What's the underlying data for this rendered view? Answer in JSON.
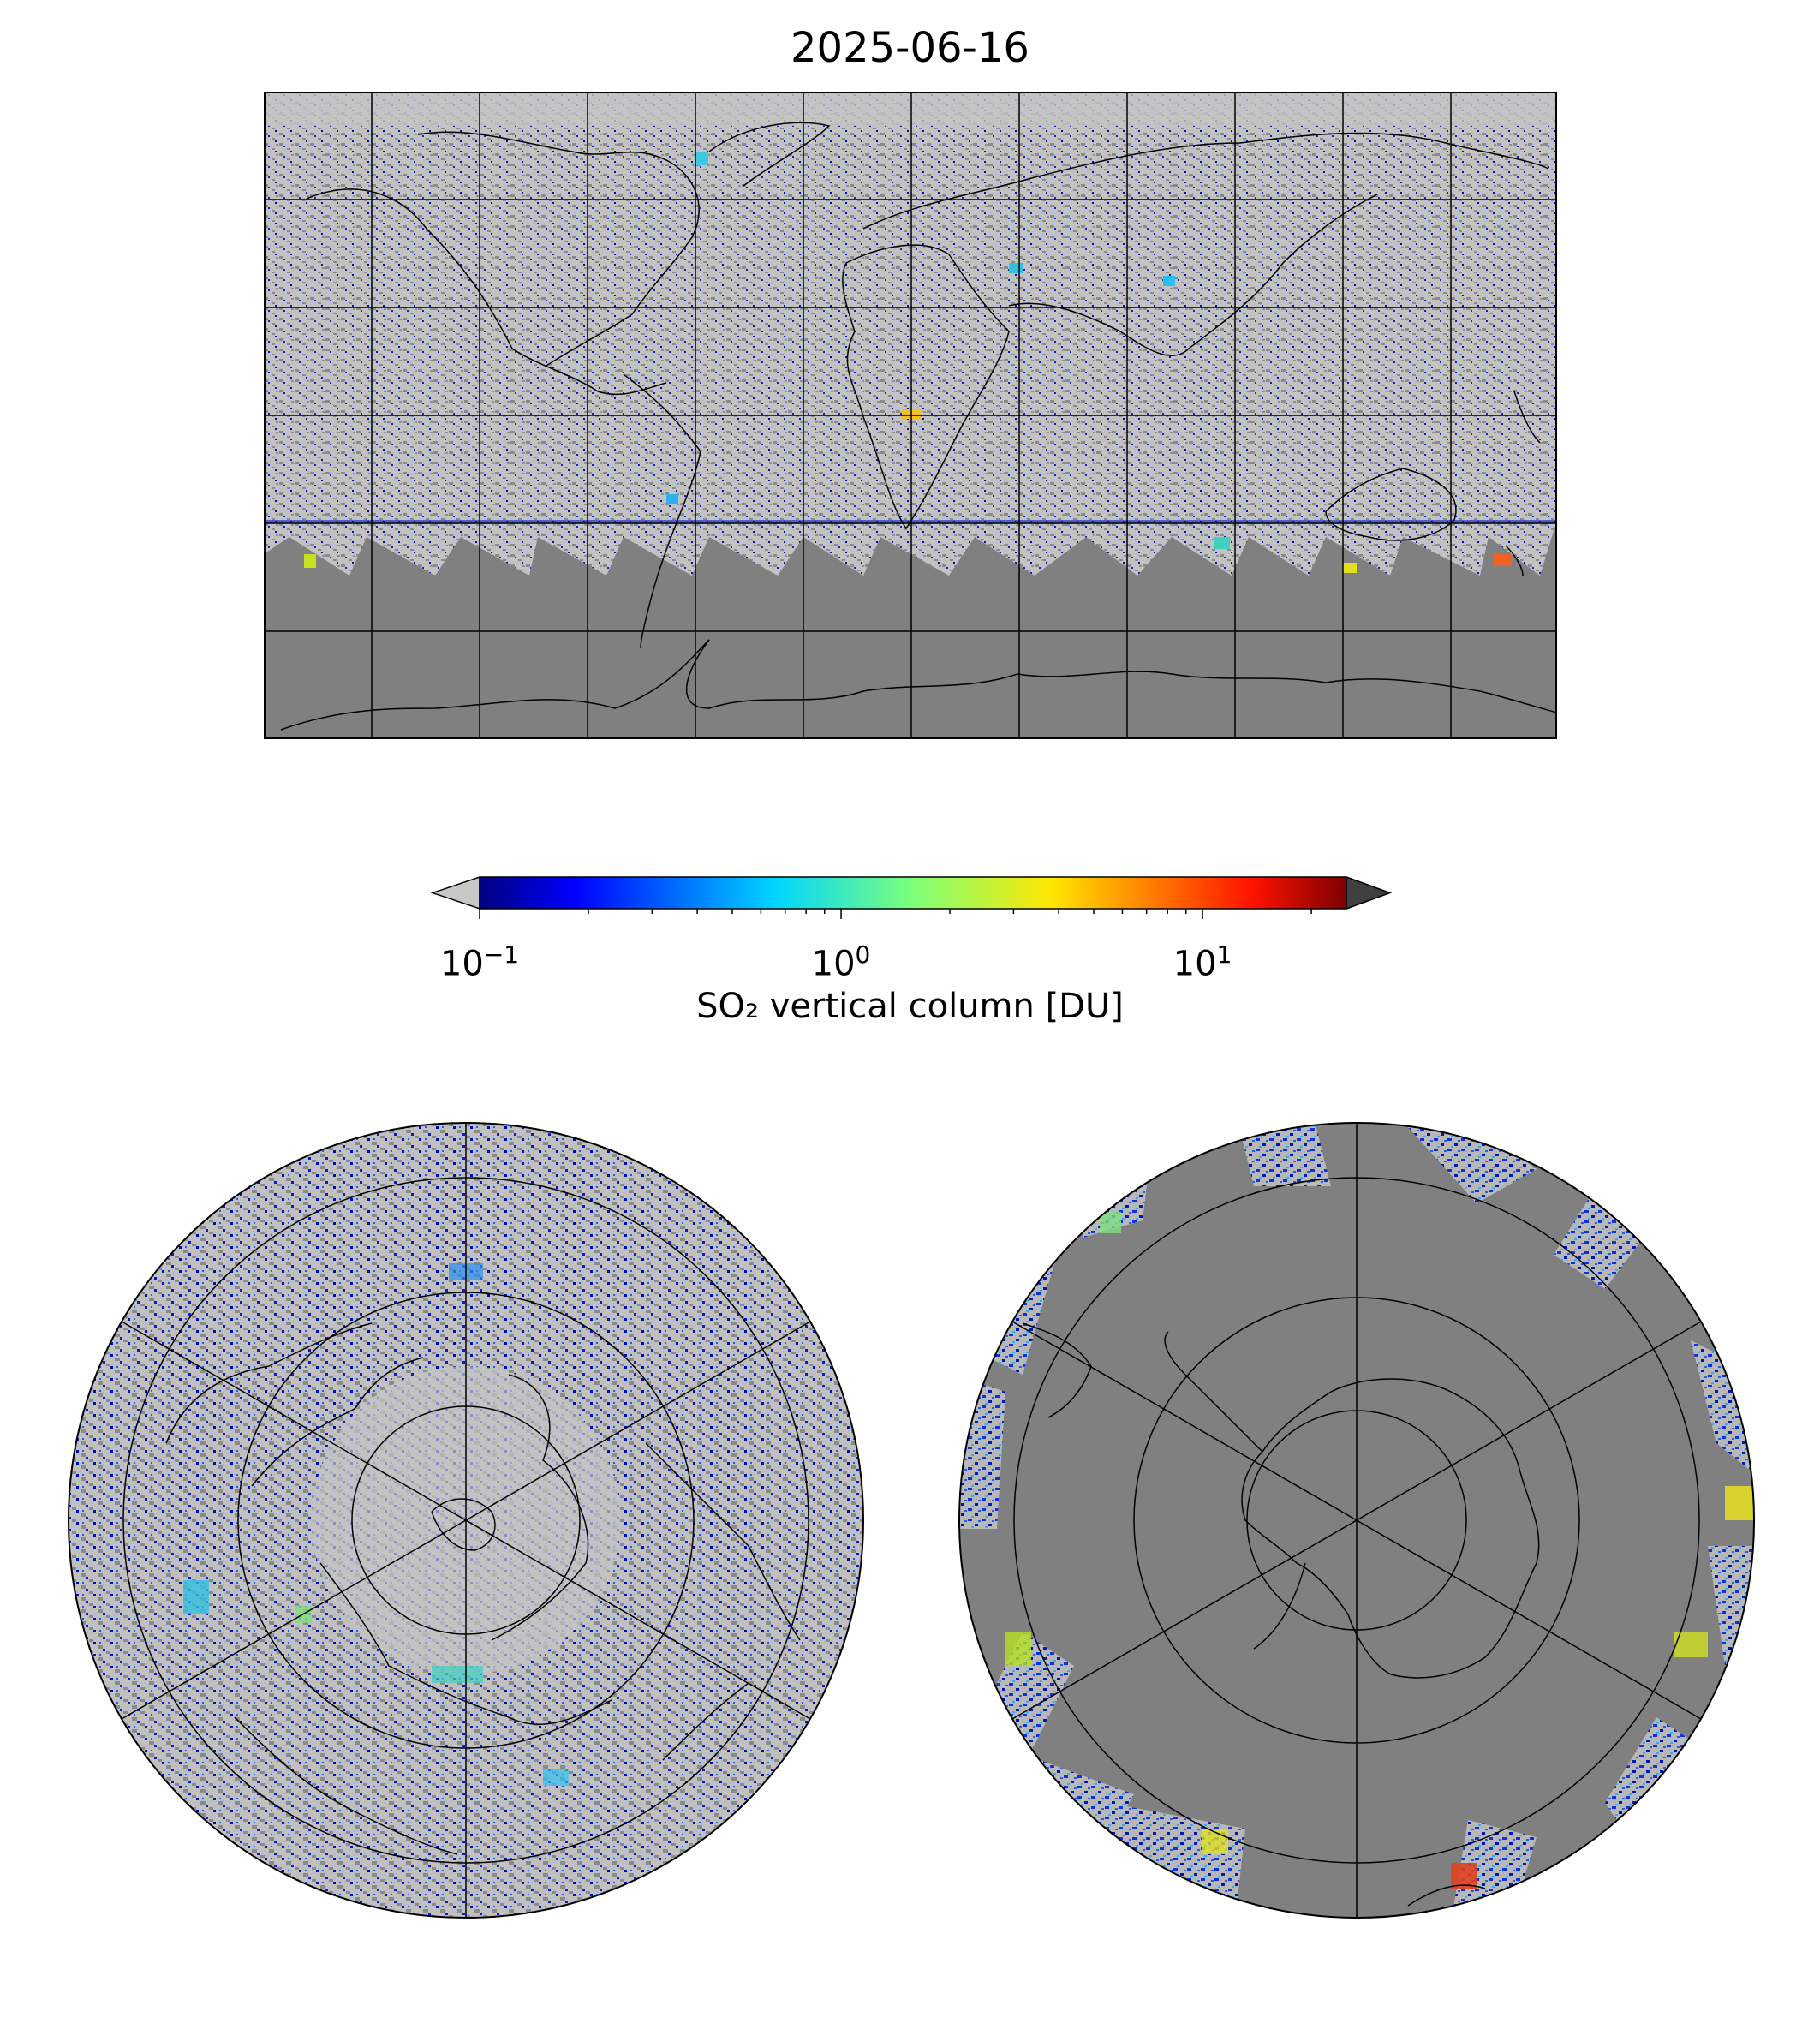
{
  "figure": {
    "title": "2025-06-16"
  },
  "colorbar": {
    "label": "SO₂ vertical column [DU]",
    "scale": "log",
    "vmin": 0.1,
    "vmax": 25,
    "colormap": "jet",
    "under_color": "#c8c8c8",
    "over_color": "#404040",
    "ticks": [
      {
        "base": "10",
        "exp": "−1",
        "value": 0.1
      },
      {
        "base": "10",
        "exp": "0",
        "value": 1
      },
      {
        "base": "10",
        "exp": "1",
        "value": 10
      }
    ]
  },
  "colors": {
    "no_data": "#808080",
    "low_value": "#c0c0c0",
    "coastline": "#000000",
    "gridline": "#000000"
  },
  "maps": [
    {
      "name": "global",
      "projection": "plate-carree",
      "gridlines": true
    },
    {
      "name": "northern-hemisphere",
      "projection": "north-polar-stereographic",
      "gridlines": true
    },
    {
      "name": "southern-hemisphere",
      "projection": "south-polar-stereographic",
      "gridlines": true
    }
  ]
}
